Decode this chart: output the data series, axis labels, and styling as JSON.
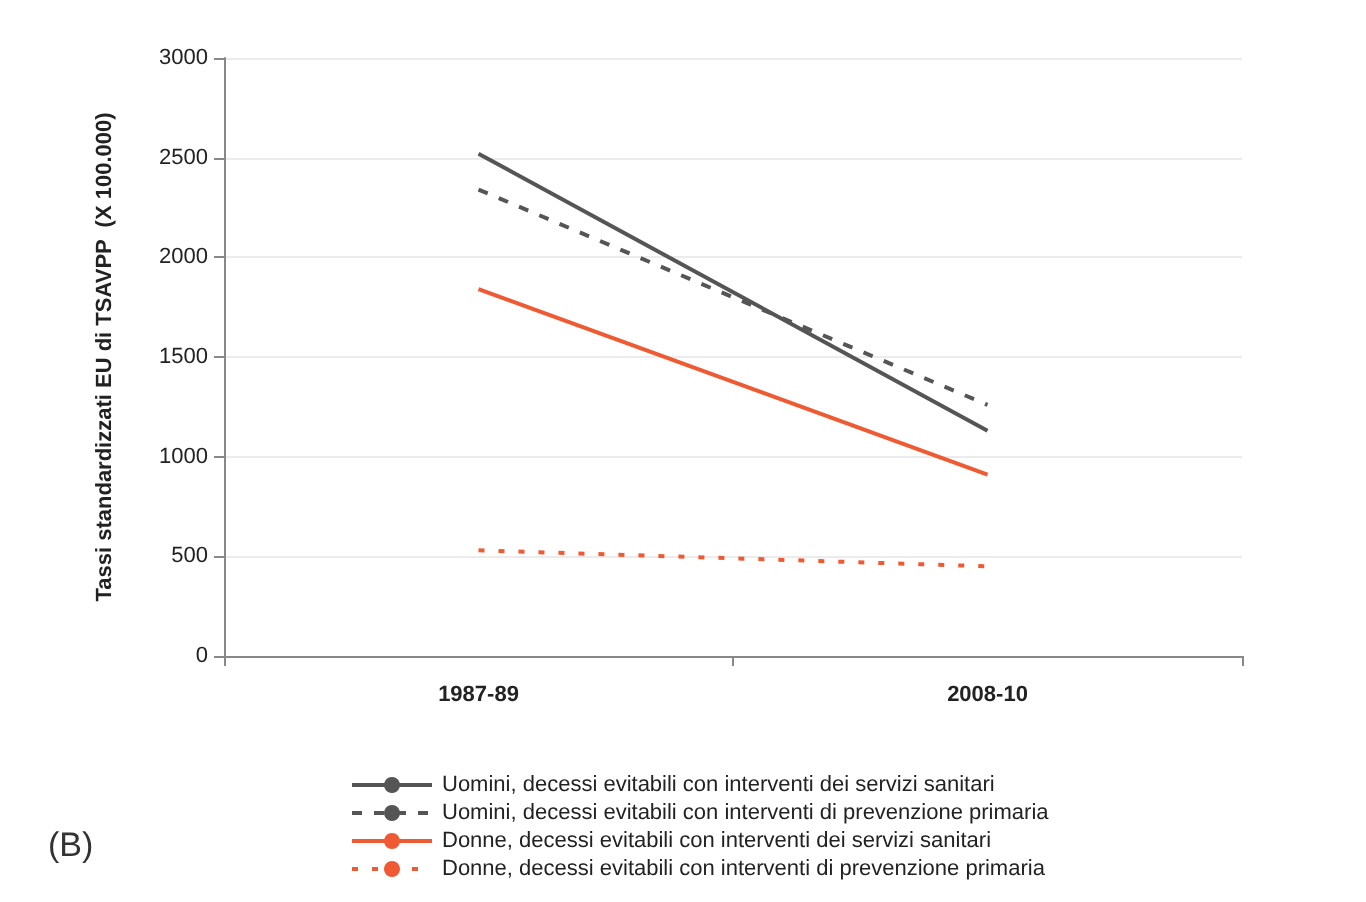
{
  "chart_data": {
    "type": "line",
    "ylabel": "Tassi standardizzati EU di TSAVPP  (X 100.000)",
    "categories": [
      "1987-89",
      "2008-10"
    ],
    "series": [
      {
        "name": "Uomini, decessi evitabili con interventi dei servizi sanitari",
        "color": "#555555",
        "line_style": "solid",
        "values": [
          2520,
          1130
        ]
      },
      {
        "name": "Uomini, decessi evitabili con interventi di prevenzione primaria",
        "color": "#555555",
        "line_style": "dashed",
        "values": [
          2340,
          1260
        ]
      },
      {
        "name": "Donne, decessi evitabili con interventi dei servizi sanitari",
        "color": "#f05a32",
        "line_style": "solid",
        "values": [
          1840,
          910
        ]
      },
      {
        "name": "Donne, decessi evitabili con interventi di prevenzione primaria",
        "color": "#f05a32",
        "line_style": "dotted",
        "values": [
          530,
          450
        ]
      }
    ],
    "ylim": [
      0,
      3000
    ],
    "yticks": [
      0,
      500,
      1000,
      1500,
      2000,
      2500,
      3000
    ],
    "grid": "y",
    "legend": "bottom",
    "marker": "none",
    "annotations": [
      "(B)"
    ]
  }
}
